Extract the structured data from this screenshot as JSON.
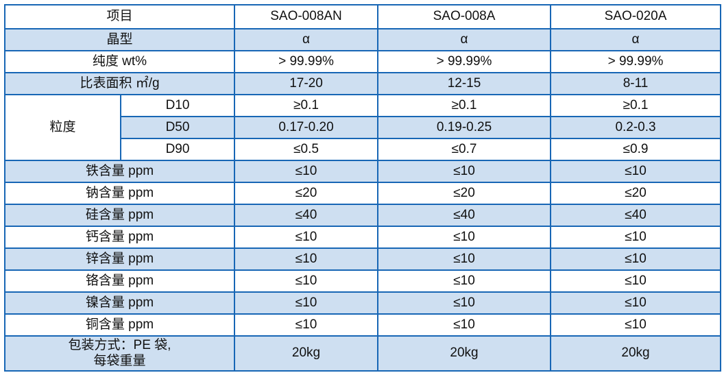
{
  "colors": {
    "border_blue": "#1766B5",
    "row_shade_blue": "#CEDFF1",
    "text": "#101010",
    "background": "#FFFFFF"
  },
  "table": {
    "header": {
      "label": "项目",
      "products": [
        "SAO-008AN",
        "SAO-008A",
        "SAO-020A"
      ]
    },
    "group_label": "粒度",
    "rows": [
      {
        "kind": "simple",
        "label": "晶型",
        "values": [
          "α",
          "α",
          "α"
        ],
        "shaded": true
      },
      {
        "kind": "simple",
        "label": "纯度 wt%",
        "values": [
          "> 99.99%",
          "> 99.99%",
          "> 99.99%"
        ],
        "shaded": false
      },
      {
        "kind": "simple",
        "label": "比表面积 ㎡/g",
        "values": [
          "17-20",
          "12-15",
          "8-11"
        ],
        "shaded": true
      },
      {
        "kind": "group-first",
        "sublabel": "D10",
        "values": [
          "≥0.1",
          "≥0.1",
          "≥0.1"
        ],
        "shaded": false
      },
      {
        "kind": "group",
        "sublabel": "D50",
        "values": [
          "0.17-0.20",
          "0.19-0.25",
          "0.2-0.3"
        ],
        "shaded": true
      },
      {
        "kind": "group",
        "sublabel": "D90",
        "values": [
          "≤0.5",
          "≤0.7",
          "≤0.9"
        ],
        "shaded": false
      },
      {
        "kind": "simple",
        "label": "铁含量 ppm",
        "values": [
          "≤10",
          "≤10",
          "≤10"
        ],
        "shaded": true
      },
      {
        "kind": "simple",
        "label": "钠含量 ppm",
        "values": [
          "≤20",
          "≤20",
          "≤20"
        ],
        "shaded": false
      },
      {
        "kind": "simple",
        "label": "硅含量 ppm",
        "values": [
          "≤40",
          "≤40",
          "≤40"
        ],
        "shaded": true
      },
      {
        "kind": "simple",
        "label": "钙含量 ppm",
        "values": [
          "≤10",
          "≤10",
          "≤10"
        ],
        "shaded": false
      },
      {
        "kind": "simple",
        "label": "锌含量 ppm",
        "values": [
          "≤10",
          "≤10",
          "≤10"
        ],
        "shaded": true
      },
      {
        "kind": "simple",
        "label": "铬含量 ppm",
        "values": [
          "≤10",
          "≤10",
          "≤10"
        ],
        "shaded": false
      },
      {
        "kind": "simple",
        "label": "镍含量 ppm",
        "values": [
          "≤10",
          "≤10",
          "≤10"
        ],
        "shaded": true
      },
      {
        "kind": "simple",
        "label": "铜含量 ppm",
        "values": [
          "≤10",
          "≤10",
          "≤10"
        ],
        "shaded": false
      },
      {
        "kind": "multiline",
        "label_lines": [
          "包装方式：PE 袋,",
          "每袋重量"
        ],
        "values": [
          "20kg",
          "20kg",
          "20kg"
        ],
        "shaded": true
      }
    ]
  }
}
